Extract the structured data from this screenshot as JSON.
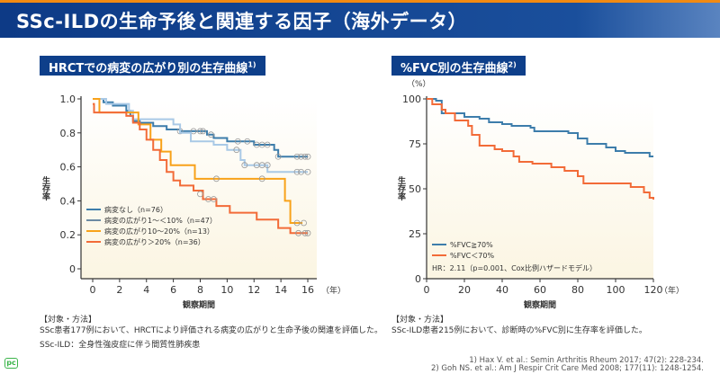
{
  "header": {
    "title": "SSc-ILDの生命予後と関連する因子（海外データ）"
  },
  "left": {
    "section_title": "HRCTでの病変の広がり別の生存曲線",
    "section_ref": "1)",
    "method_heading": "【対象・方法】",
    "method_text": "SSc患者177例において、HRCTにより評価される病変の広がりと生命予後の関連を評価した。",
    "note": "SSc-ILD：全身性強皮症に伴う間質性肺疾患"
  },
  "right": {
    "section_title": "%FVC別の生存曲線",
    "section_ref": "2)",
    "method_heading": "【対象・方法】",
    "method_text": "SSc-ILD患者215例において、診断時の%FVC別に生存率を評価した。",
    "hr_text": "HR：2.11（p=0.001、Cox比例ハザードモデル）"
  },
  "references": [
    "1) Hax V. et al.: Semin Arthritis Rheum 2017; 47(2): 228-234.",
    "2) Goh NS. et al.: Am J Respir Crit Care Med 2008; 177(11): 1248-1254."
  ],
  "logo": "pc",
  "chart_data": [
    {
      "type": "line",
      "step": true,
      "xlabel": "観察期間",
      "xunit": "（年）",
      "ylabel": "生存率",
      "xlim": [
        0,
        16
      ],
      "ylim": [
        0,
        1
      ],
      "xticks": [
        0,
        2,
        4,
        6,
        8,
        10,
        12,
        14,
        16
      ],
      "yticks": [
        "0",
        "0.2",
        "0.4",
        "0.6",
        "0.8",
        "1.0"
      ],
      "legend_placement": "bottom-left",
      "background": "#fbf5e2",
      "series": [
        {
          "name": "病変なし（n=76）",
          "color": "#3d7dab",
          "points": [
            [
              0,
              1
            ],
            [
              0.8,
              0.98
            ],
            [
              1.5,
              0.96
            ],
            [
              2.5,
              0.93
            ],
            [
              2.8,
              0.9
            ],
            [
              3,
              0.87
            ],
            [
              3.5,
              0.86
            ],
            [
              4.5,
              0.84
            ],
            [
              5.5,
              0.82
            ],
            [
              6.5,
              0.81
            ],
            [
              8.5,
              0.79
            ],
            [
              9,
              0.77
            ],
            [
              10,
              0.75
            ],
            [
              12,
              0.73
            ],
            [
              13.5,
              0.7
            ],
            [
              13.8,
              0.66
            ],
            [
              16,
              0.66
            ]
          ],
          "censored": [
            [
              6.5,
              0.81
            ],
            [
              7.5,
              0.81
            ],
            [
              8,
              0.81
            ],
            [
              8.2,
              0.81
            ],
            [
              8.8,
              0.79
            ],
            [
              10.8,
              0.75
            ],
            [
              11.5,
              0.75
            ],
            [
              12.2,
              0.73
            ],
            [
              12.6,
              0.73
            ],
            [
              13,
              0.73
            ],
            [
              13.8,
              0.66
            ],
            [
              15.2,
              0.66
            ],
            [
              15.5,
              0.66
            ],
            [
              15.8,
              0.66
            ],
            [
              16,
              0.66
            ]
          ]
        },
        {
          "name": "病変の広がり1～＜10%（n=47）",
          "color": "#a9c9e6",
          "legend_color": "#6b8aa3",
          "points": [
            [
              0,
              1
            ],
            [
              1,
              0.97
            ],
            [
              2.7,
              0.93
            ],
            [
              3,
              0.88
            ],
            [
              6,
              0.85
            ],
            [
              6.5,
              0.8
            ],
            [
              7.3,
              0.75
            ],
            [
              9,
              0.73
            ],
            [
              10,
              0.7
            ],
            [
              11,
              0.64
            ],
            [
              11.3,
              0.61
            ],
            [
              13,
              0.57
            ],
            [
              16,
              0.57
            ]
          ],
          "censored": [
            [
              10.7,
              0.7
            ],
            [
              11.3,
              0.61
            ],
            [
              12.2,
              0.61
            ],
            [
              12.6,
              0.61
            ],
            [
              13,
              0.61
            ],
            [
              15.2,
              0.57
            ],
            [
              15.5,
              0.57
            ],
            [
              16,
              0.57
            ]
          ]
        },
        {
          "name": "病変の広がり10～20%（n=13）",
          "color": "#f8a21a",
          "points": [
            [
              0,
              1
            ],
            [
              0.5,
              0.92
            ],
            [
              3.4,
              0.85
            ],
            [
              4.3,
              0.76
            ],
            [
              5.1,
              0.69
            ],
            [
              5.8,
              0.61
            ],
            [
              7.6,
              0.53
            ],
            [
              14.3,
              0.4
            ],
            [
              14.7,
              0.27
            ],
            [
              15.6,
              0.27
            ]
          ],
          "censored": [
            [
              9.2,
              0.53
            ],
            [
              12.6,
              0.53
            ],
            [
              15.2,
              0.27
            ],
            [
              15.7,
              0.27
            ]
          ]
        },
        {
          "name": "病変の広がり＞20%（n=36）",
          "color": "#f26b38",
          "points": [
            [
              0,
              0.97
            ],
            [
              0.1,
              0.92
            ],
            [
              2.5,
              0.9
            ],
            [
              3,
              0.86
            ],
            [
              3.5,
              0.82
            ],
            [
              4,
              0.76
            ],
            [
              4.5,
              0.7
            ],
            [
              5,
              0.64
            ],
            [
              5.5,
              0.57
            ],
            [
              6,
              0.52
            ],
            [
              6.5,
              0.49
            ],
            [
              7.5,
              0.46
            ],
            [
              8.2,
              0.41
            ],
            [
              9.2,
              0.37
            ],
            [
              10.2,
              0.33
            ],
            [
              12.2,
              0.29
            ],
            [
              13.8,
              0.24
            ],
            [
              14.7,
              0.21
            ],
            [
              16,
              0.21
            ]
          ],
          "censored": [
            [
              8,
              0.44
            ],
            [
              8.6,
              0.41
            ],
            [
              9,
              0.41
            ],
            [
              15.3,
              0.21
            ],
            [
              15.8,
              0.21
            ],
            [
              16,
              0.21
            ]
          ]
        }
      ]
    },
    {
      "type": "line",
      "step": true,
      "xlabel": "観察期間",
      "xunit": "（年）",
      "ylabel": "生存率",
      "yunit": "（%）",
      "xlim": [
        0,
        120
      ],
      "ylim": [
        0,
        100
      ],
      "xticks": [
        0,
        20,
        40,
        60,
        80,
        100,
        120
      ],
      "yticks": [
        "0",
        "25",
        "50",
        "75",
        "100"
      ],
      "legend_placement": "bottom-left",
      "background": "#fbf5e2",
      "series": [
        {
          "name": "%FVC≧70%",
          "color": "#3d7dab",
          "points": [
            [
              0,
              100
            ],
            [
              5,
              99
            ],
            [
              8,
              92
            ],
            [
              20,
              90
            ],
            [
              28,
              89
            ],
            [
              33,
              87
            ],
            [
              40,
              86
            ],
            [
              45,
              85
            ],
            [
              55,
              84
            ],
            [
              57,
              82
            ],
            [
              75,
              81
            ],
            [
              80,
              78
            ],
            [
              85,
              75
            ],
            [
              95,
              73
            ],
            [
              100,
              71
            ],
            [
              105,
              70
            ],
            [
              118,
              68
            ],
            [
              120,
              68
            ]
          ]
        },
        {
          "name": "%FVC＜70%",
          "color": "#f26b38",
          "points": [
            [
              0,
              100
            ],
            [
              3,
              97
            ],
            [
              8,
              94
            ],
            [
              10,
              92
            ],
            [
              15,
              88
            ],
            [
              22,
              85
            ],
            [
              24,
              80
            ],
            [
              28,
              74
            ],
            [
              36,
              72
            ],
            [
              40,
              71
            ],
            [
              46,
              68
            ],
            [
              49,
              65
            ],
            [
              56,
              64
            ],
            [
              66,
              62
            ],
            [
              73,
              60
            ],
            [
              80,
              57
            ],
            [
              83,
              53
            ],
            [
              108,
              51
            ],
            [
              115,
              48
            ],
            [
              118,
              45
            ],
            [
              120,
              44
            ]
          ]
        }
      ]
    }
  ]
}
